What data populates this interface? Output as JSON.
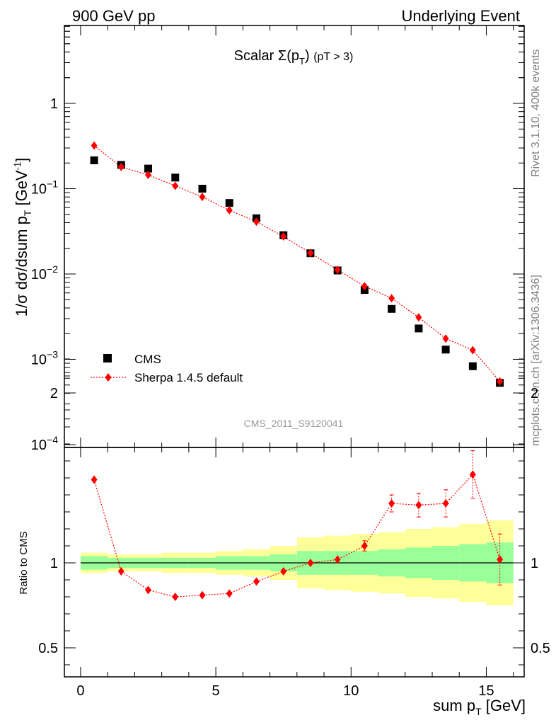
{
  "header": {
    "left": "900 GeV pp",
    "right": "Underlying Event"
  },
  "side": {
    "rivet": "Rivet 3.1.10,  400k events",
    "mcplots": "mcplots.cern.ch [arXiv:1306.3436]"
  },
  "chart_data": {
    "type": "scatter",
    "title": "Scalar Σ(pT) (pT > 3)",
    "title_parts": {
      "main": "Scalar Σ(p",
      "sub": "T",
      "close": ")",
      "extra": "(pT >  3)"
    },
    "analysis_id": "CMS_2011_S9120041",
    "xlabel": "sum pT [GeV]",
    "xlabel_parts": {
      "main": "sum p",
      "sub": "T",
      "rest": " [GeV]"
    },
    "ylabel": "1/σ dσ/dsum pT [GeV⁻¹]",
    "ylabel_parts": {
      "main": "1/σ dσ/dsum p",
      "sub": "T",
      "rest": " [GeV",
      "sup": "-1",
      "close": "]"
    },
    "ratio_ylabel": "Ratio to CMS",
    "xlim": [
      -0.6,
      16.4
    ],
    "ylim": [
      0.0001,
      10
    ],
    "ylog": true,
    "ratio_ylim": [
      0.35,
      2.3
    ],
    "xticks": [
      "0",
      "5",
      "10",
      "15"
    ],
    "yticks": [
      "10⁻⁴",
      "10⁻³",
      "10⁻²",
      "10⁻¹",
      "1"
    ],
    "ytick_parts": [
      {
        "value": 0.0001,
        "base": "10",
        "exp": "−4"
      },
      {
        "value": 0.001,
        "base": "10",
        "exp": "−3"
      },
      {
        "value": 0.01,
        "base": "10",
        "exp": "−2"
      },
      {
        "value": 0.1,
        "base": "10",
        "exp": "−1"
      },
      {
        "value": 1,
        "base": "1",
        "exp": ""
      }
    ],
    "ratio_yticks": [
      {
        "value": 0.5,
        "label": "0.5"
      },
      {
        "value": 1,
        "label": "1"
      },
      {
        "value": 2,
        "label": "2"
      }
    ],
    "x": [
      0.5,
      1.5,
      2.5,
      3.5,
      4.5,
      5.5,
      6.5,
      7.5,
      8.5,
      9.5,
      10.5,
      11.5,
      12.5,
      13.5,
      14.5,
      15.5
    ],
    "series": [
      {
        "name": "CMS",
        "color": "#000000",
        "marker": "square",
        "values": [
          0.215,
          0.19,
          0.172,
          0.135,
          0.1,
          0.068,
          0.045,
          0.0285,
          0.0175,
          0.011,
          0.0065,
          0.0039,
          0.0023,
          0.0013,
          0.00083,
          0.00053
        ]
      },
      {
        "name": "Sherpa 1.4.5 default",
        "color": "#ff0000",
        "marker": "diamond",
        "line": "dotted",
        "values": [
          0.32,
          0.18,
          0.145,
          0.108,
          0.08,
          0.056,
          0.041,
          0.0275,
          0.0176,
          0.0112,
          0.0072,
          0.0052,
          0.0031,
          0.00175,
          0.00128,
          0.00055
        ]
      }
    ],
    "ratio": {
      "values": [
        1.49,
        0.95,
        0.84,
        0.8,
        0.81,
        0.82,
        0.89,
        0.95,
        1.0,
        1.02,
        1.1,
        1.35,
        1.34,
        1.35,
        1.52,
        1.02
      ],
      "errors": [
        0,
        0,
        0,
        0,
        0,
        0,
        0,
        0,
        0,
        0,
        0.03,
        0.05,
        0.07,
        0.08,
        0.14,
        0.15
      ],
      "band_green": [
        0.04,
        0.03,
        0.03,
        0.03,
        0.03,
        0.04,
        0.04,
        0.05,
        0.07,
        0.07,
        0.07,
        0.08,
        0.09,
        0.1,
        0.11,
        0.12
      ],
      "band_yellow": [
        0.06,
        0.05,
        0.05,
        0.06,
        0.06,
        0.07,
        0.08,
        0.1,
        0.15,
        0.16,
        0.17,
        0.18,
        0.2,
        0.21,
        0.23,
        0.25
      ]
    },
    "legend": {
      "placement": "lower-left"
    }
  }
}
